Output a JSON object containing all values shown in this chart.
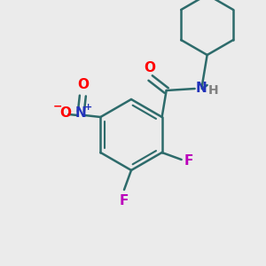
{
  "background_color": "#ebebeb",
  "bond_color": "#2d6b6b",
  "bond_width": 1.8,
  "atom_colors": {
    "O": "#ff0000",
    "N_amide": "#2233bb",
    "N_nitro": "#2233bb",
    "F": "#bb00bb",
    "H": "#808080",
    "plus": "#2233bb",
    "minus": "#ff0000"
  },
  "font_size_atom": 10,
  "font_size_charge": 7
}
